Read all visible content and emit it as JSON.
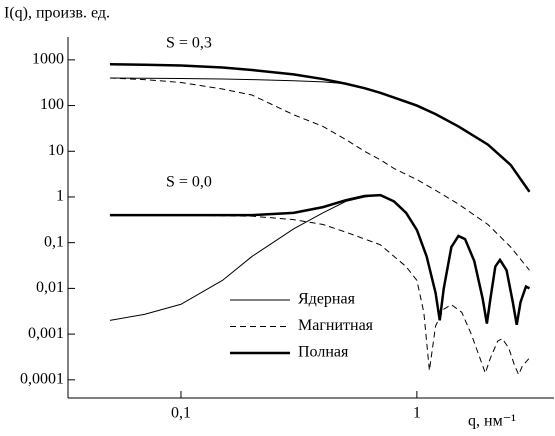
{
  "chart_data": {
    "type": "line",
    "y_label": "I(q), произв. ед.",
    "x_label": "q, нм⁻¹",
    "annotations": [
      "S = 0,3",
      "S = 0,0"
    ],
    "log_x": true,
    "log_y": true,
    "xlim": [
      0.0332,
      3.85
    ],
    "ylim": [
      4e-05,
      3162
    ],
    "xticks": [
      {
        "value": 0.1,
        "label": "0,1"
      },
      1
    ],
    "yticks": [
      1000,
      100,
      10,
      1,
      {
        "value": 0.1,
        "label": "0,1"
      },
      {
        "value": 0.01,
        "label": "0,01"
      },
      {
        "value": 0.001,
        "label": "0,001"
      },
      {
        "value": 0.0001,
        "label": "0,0001"
      }
    ],
    "series": [
      {
        "name": "Ядерная",
        "color": "#000000",
        "line_width": 1,
        "dashed": false,
        "curves": [
          {
            "x": [
              0.05,
              0.07,
              0.1,
              0.15,
              0.2,
              0.3,
              0.4,
              0.5,
              0.6,
              0.7,
              0.8,
              1,
              1.2,
              1.5,
              2,
              2.5,
              3
            ],
            "values": [
              400,
              395,
              390,
              380,
              370,
              350,
              330,
              300,
              240,
              190,
              150,
              100,
              65,
              35,
              14,
              5,
              1.3
            ]
          },
          {
            "x": [
              0.05,
              0.07,
              0.1,
              0.15,
              0.2,
              0.3,
              0.4,
              0.5,
              0.6,
              0.7,
              0.8,
              0.9,
              1,
              1.1,
              1.2,
              1.25,
              1.3,
              1.4,
              1.5,
              1.6,
              1.75,
              1.9,
              1.98,
              2.05,
              2.15,
              2.25,
              2.4,
              2.55,
              2.65,
              2.75,
              2.9,
              3
            ],
            "values": [
              0.002,
              0.0027,
              0.0045,
              0.015,
              0.05,
              0.2,
              0.45,
              0.8,
              1.0,
              1.1,
              0.8,
              0.45,
              0.19,
              0.05,
              0.008,
              0.002,
              0.01,
              0.08,
              0.14,
              0.12,
              0.04,
              0.006,
              0.0017,
              0.006,
              0.03,
              0.042,
              0.025,
              0.005,
              0.0016,
              0.005,
              0.011,
              0.01
            ]
          }
        ]
      },
      {
        "name": "Магнитная",
        "color": "#000000",
        "line_width": 1,
        "dashed": true,
        "curves": [
          {
            "x": [
              0.05,
              0.07,
              0.1,
              0.15,
              0.2,
              0.3,
              0.4,
              0.5,
              0.6,
              0.7,
              0.8,
              1,
              1.2,
              1.5,
              2,
              2.5,
              3
            ],
            "values": [
              400,
              370,
              320,
              230,
              170,
              63,
              35,
              18,
              10,
              6.5,
              4.2,
              2.4,
              1.4,
              0.7,
              0.25,
              0.08,
              0.025
            ]
          },
          {
            "x": [
              0.05,
              0.1,
              0.2,
              0.3,
              0.4,
              0.5,
              0.7,
              0.9,
              1,
              1.07,
              1.13,
              1.2,
              1.3,
              1.4,
              1.55,
              1.7,
              1.85,
              1.95,
              2.05,
              2.2,
              2.3,
              2.45,
              2.6,
              2.7,
              2.8,
              3
            ],
            "values": [
              0.4,
              0.4,
              0.38,
              0.32,
              0.25,
              0.17,
              0.09,
              0.03,
              0.015,
              0.003,
              0.00016,
              0.0015,
              0.0035,
              0.0044,
              0.003,
              0.001,
              0.0003,
              0.00014,
              0.0003,
              0.0007,
              0.0008,
              0.0005,
              0.0002,
              0.00013,
              0.0002,
              0.0003
            ]
          }
        ]
      },
      {
        "name": "Полная",
        "color": "#000000",
        "line_width": 2.5,
        "dashed": false,
        "curves": [
          {
            "x": [
              0.05,
              0.07,
              0.1,
              0.15,
              0.2,
              0.3,
              0.4,
              0.5,
              0.6,
              0.7,
              0.8,
              1,
              1.2,
              1.5,
              2,
              2.5,
              3
            ],
            "values": [
              800,
              780,
              750,
              680,
              600,
              480,
              380,
              300,
              240,
              190,
              150,
              100,
              65,
              35,
              14,
              5,
              1.3
            ]
          },
          {
            "x": [
              0.05,
              0.1,
              0.2,
              0.3,
              0.4,
              0.5,
              0.6,
              0.7,
              0.8,
              0.9,
              1,
              1.1,
              1.2,
              1.25,
              1.3,
              1.4,
              1.5,
              1.6,
              1.75,
              1.9,
              1.98,
              2.05,
              2.15,
              2.25,
              2.4,
              2.55,
              2.65,
              2.75,
              2.9,
              3
            ],
            "values": [
              0.4,
              0.4,
              0.4,
              0.45,
              0.6,
              0.85,
              1.05,
              1.1,
              0.8,
              0.45,
              0.19,
              0.05,
              0.008,
              0.002,
              0.01,
              0.08,
              0.14,
              0.12,
              0.04,
              0.006,
              0.0017,
              0.006,
              0.03,
              0.042,
              0.025,
              0.005,
              0.0016,
              0.005,
              0.011,
              0.01
            ]
          }
        ]
      }
    ]
  }
}
